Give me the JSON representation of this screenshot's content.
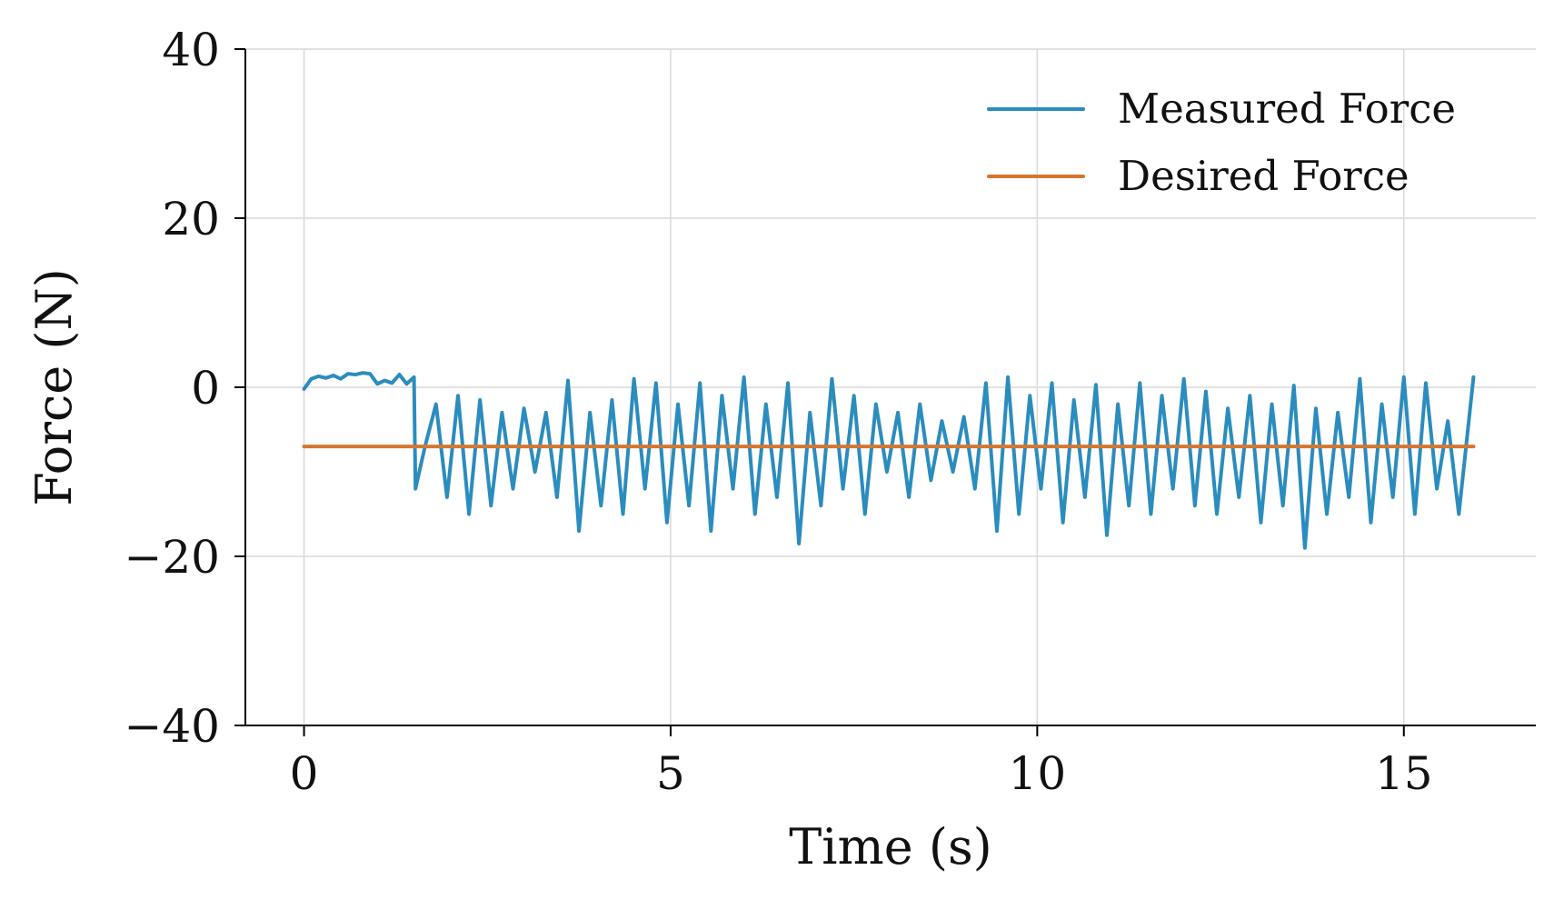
{
  "chart_data": {
    "type": "line",
    "title": "",
    "xlabel": "Time (s)",
    "ylabel": "Force (N)",
    "xlim": [
      -0.8,
      16.8
    ],
    "ylim": [
      -40,
      40
    ],
    "xticks": [
      0,
      5,
      10,
      15
    ],
    "yticks": [
      40,
      20,
      0,
      -20,
      -40
    ],
    "xtick_labels": [
      "0",
      "5",
      "10",
      "15"
    ],
    "ytick_labels": [
      "40",
      "20",
      "0",
      "−20",
      "−40"
    ],
    "grid": true,
    "legend": {
      "placement": "top-right",
      "entries": [
        "Measured Force",
        "Desired Force"
      ]
    },
    "series": [
      {
        "name": "Measured Force",
        "color": "#2b8cbe",
        "points": [
          [
            0.0,
            -0.2
          ],
          [
            0.1,
            1.0
          ],
          [
            0.2,
            1.3
          ],
          [
            0.3,
            1.1
          ],
          [
            0.4,
            1.4
          ],
          [
            0.5,
            1.0
          ],
          [
            0.6,
            1.6
          ],
          [
            0.7,
            1.5
          ],
          [
            0.8,
            1.7
          ],
          [
            0.9,
            1.6
          ],
          [
            1.0,
            0.4
          ],
          [
            1.1,
            0.8
          ],
          [
            1.2,
            0.5
          ],
          [
            1.3,
            1.5
          ],
          [
            1.4,
            0.4
          ],
          [
            1.5,
            1.2
          ],
          [
            1.52,
            -12.0
          ],
          [
            1.65,
            -7.0
          ],
          [
            1.8,
            -2.0
          ],
          [
            1.95,
            -13.0
          ],
          [
            2.1,
            -1.0
          ],
          [
            2.25,
            -15.0
          ],
          [
            2.4,
            -1.5
          ],
          [
            2.55,
            -14.0
          ],
          [
            2.7,
            -3.0
          ],
          [
            2.85,
            -12.0
          ],
          [
            3.0,
            -2.5
          ],
          [
            3.15,
            -10.0
          ],
          [
            3.3,
            -3.0
          ],
          [
            3.45,
            -13.0
          ],
          [
            3.6,
            0.8
          ],
          [
            3.75,
            -17.0
          ],
          [
            3.9,
            -3.0
          ],
          [
            4.05,
            -14.0
          ],
          [
            4.2,
            -1.5
          ],
          [
            4.35,
            -15.0
          ],
          [
            4.5,
            1.0
          ],
          [
            4.65,
            -12.0
          ],
          [
            4.8,
            0.5
          ],
          [
            4.95,
            -16.0
          ],
          [
            5.1,
            -2.0
          ],
          [
            5.25,
            -14.0
          ],
          [
            5.4,
            0.5
          ],
          [
            5.55,
            -17.0
          ],
          [
            5.7,
            -1.0
          ],
          [
            5.85,
            -12.0
          ],
          [
            6.0,
            1.2
          ],
          [
            6.15,
            -15.0
          ],
          [
            6.3,
            -2.0
          ],
          [
            6.45,
            -13.0
          ],
          [
            6.6,
            0.5
          ],
          [
            6.75,
            -18.5
          ],
          [
            6.9,
            -3.0
          ],
          [
            7.05,
            -14.0
          ],
          [
            7.2,
            1.0
          ],
          [
            7.35,
            -12.0
          ],
          [
            7.5,
            -1.0
          ],
          [
            7.65,
            -15.0
          ],
          [
            7.8,
            -2.0
          ],
          [
            7.95,
            -10.0
          ],
          [
            8.1,
            -3.0
          ],
          [
            8.25,
            -13.0
          ],
          [
            8.4,
            -2.0
          ],
          [
            8.55,
            -11.0
          ],
          [
            8.7,
            -4.0
          ],
          [
            8.85,
            -10.0
          ],
          [
            9.0,
            -3.5
          ],
          [
            9.15,
            -12.0
          ],
          [
            9.3,
            0.5
          ],
          [
            9.45,
            -17.0
          ],
          [
            9.6,
            1.2
          ],
          [
            9.75,
            -15.0
          ],
          [
            9.9,
            -1.0
          ],
          [
            10.05,
            -12.0
          ],
          [
            10.2,
            0.5
          ],
          [
            10.35,
            -16.0
          ],
          [
            10.5,
            -1.5
          ],
          [
            10.65,
            -13.0
          ],
          [
            10.8,
            0.3
          ],
          [
            10.95,
            -17.5
          ],
          [
            11.1,
            -2.0
          ],
          [
            11.25,
            -14.0
          ],
          [
            11.4,
            0.5
          ],
          [
            11.55,
            -15.0
          ],
          [
            11.7,
            -1.0
          ],
          [
            11.85,
            -12.0
          ],
          [
            12.0,
            1.0
          ],
          [
            12.15,
            -14.0
          ],
          [
            12.3,
            -0.5
          ],
          [
            12.45,
            -15.0
          ],
          [
            12.6,
            -2.5
          ],
          [
            12.75,
            -13.0
          ],
          [
            12.9,
            -1.0
          ],
          [
            13.05,
            -16.0
          ],
          [
            13.2,
            -2.0
          ],
          [
            13.35,
            -14.0
          ],
          [
            13.5,
            0.2
          ],
          [
            13.65,
            -19.0
          ],
          [
            13.8,
            -2.5
          ],
          [
            13.95,
            -15.0
          ],
          [
            14.1,
            -3.0
          ],
          [
            14.25,
            -13.0
          ],
          [
            14.4,
            1.0
          ],
          [
            14.55,
            -16.0
          ],
          [
            14.7,
            -2.0
          ],
          [
            14.85,
            -13.0
          ],
          [
            15.0,
            1.2
          ],
          [
            15.15,
            -15.0
          ],
          [
            15.3,
            0.5
          ],
          [
            15.45,
            -12.0
          ],
          [
            15.6,
            -4.0
          ],
          [
            15.75,
            -15.0
          ],
          [
            15.95,
            1.2
          ]
        ]
      },
      {
        "name": "Desired Force",
        "color": "#d6762f",
        "points": [
          [
            0.0,
            -7.0
          ],
          [
            15.95,
            -7.0
          ]
        ]
      }
    ]
  }
}
